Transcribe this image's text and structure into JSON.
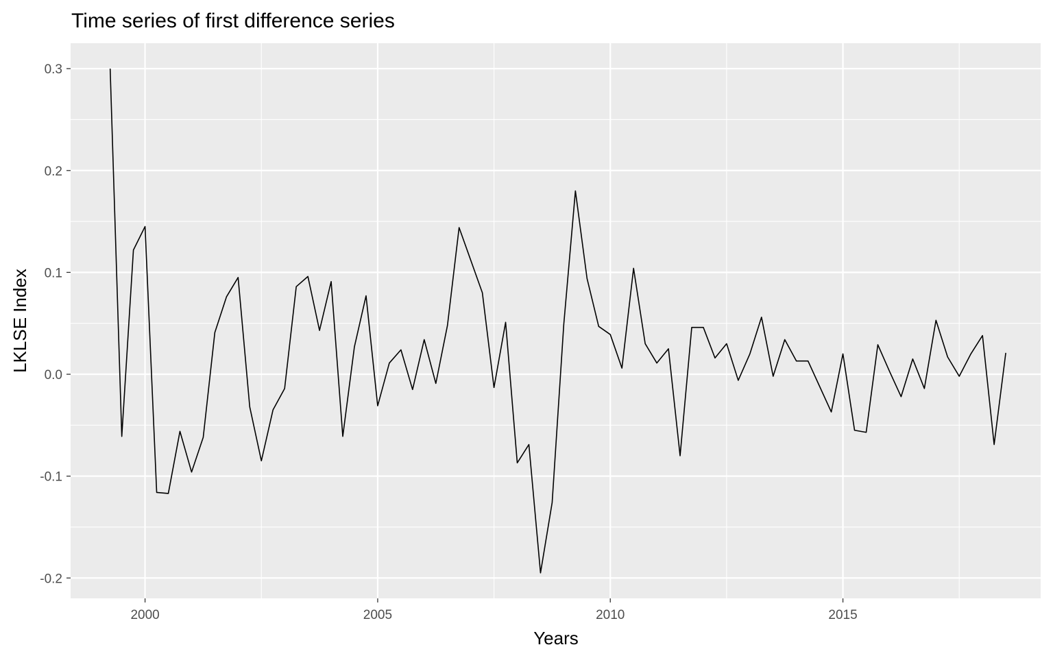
{
  "chart_data": {
    "type": "line",
    "title": "Time series of first difference series",
    "xlabel": "Years",
    "ylabel": "LKLSE Index",
    "xlim": [
      1998.4,
      2019.25
    ],
    "ylim": [
      -0.22,
      0.325
    ],
    "x_ticks": [
      2000,
      2005,
      2010,
      2015
    ],
    "x_tick_labels": [
      "2000",
      "2005",
      "2010",
      "2015"
    ],
    "y_ticks": [
      -0.2,
      -0.1,
      0.0,
      0.1,
      0.2,
      0.3
    ],
    "y_tick_labels": [
      "-0.2",
      "-0.1",
      "0.0",
      "0.1",
      "0.2",
      "0.3"
    ],
    "grid": true,
    "colors": {
      "panel_background": "#ebebeb",
      "grid": "#ffffff",
      "line": "#000000"
    },
    "series": [
      {
        "x_start": 1999.25,
        "x_step": 0.25,
        "values": [
          0.3,
          -0.061,
          0.122,
          0.145,
          -0.116,
          -0.117,
          -0.056,
          -0.096,
          -0.062,
          0.041,
          0.076,
          0.095,
          -0.032,
          -0.085,
          -0.035,
          -0.014,
          0.086,
          0.096,
          0.043,
          0.091,
          -0.061,
          0.027,
          0.077,
          -0.031,
          0.011,
          0.024,
          -0.015,
          0.034,
          -0.009,
          0.048,
          0.144,
          0.112,
          0.08,
          -0.013,
          0.051,
          -0.087,
          -0.069,
          -0.195,
          -0.126,
          0.049,
          0.18,
          0.094,
          0.047,
          0.039,
          0.006,
          0.104,
          0.03,
          0.011,
          0.025,
          -0.08,
          0.046,
          0.046,
          0.016,
          0.03,
          -0.006,
          0.02,
          0.056,
          -0.002,
          0.034,
          0.013,
          0.013,
          -0.012,
          -0.037,
          0.02,
          -0.055,
          -0.057,
          0.029,
          0.003,
          -0.022,
          0.015,
          -0.014,
          0.053,
          0.017,
          -0.002,
          0.02,
          0.038,
          -0.069,
          0.021
        ]
      }
    ]
  }
}
